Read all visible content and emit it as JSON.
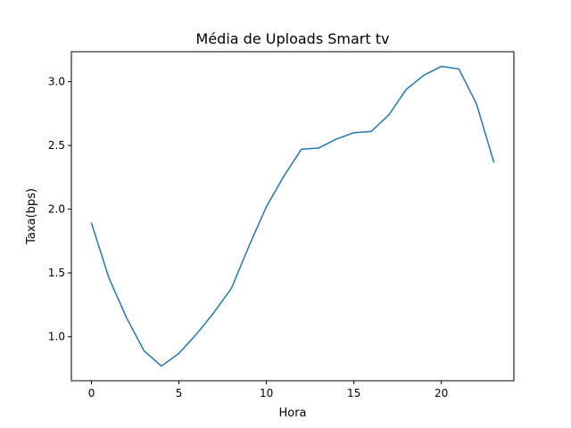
{
  "chart_data": {
    "type": "line",
    "title": "Média de Uploads Smart tv",
    "xlabel": "Hora",
    "ylabel": "Taxa(bps)",
    "xlim": [
      -1.15,
      24.15
    ],
    "ylim": [
      0.655,
      3.235
    ],
    "xticks": [
      0,
      5,
      10,
      15,
      20
    ],
    "yticks": [
      1.0,
      1.5,
      2.0,
      2.5,
      3.0
    ],
    "grid": false,
    "legend": "none",
    "series": [
      {
        "color": "#1f77b4",
        "x": [
          0,
          1,
          2,
          3,
          4,
          5,
          6,
          7,
          8,
          9,
          10,
          11,
          12,
          13,
          14,
          15,
          16,
          17,
          18,
          19,
          20,
          21,
          22,
          23
        ],
        "y": [
          1.89,
          1.46,
          1.15,
          0.89,
          0.77,
          0.87,
          1.02,
          1.19,
          1.38,
          1.71,
          2.02,
          2.26,
          2.47,
          2.48,
          2.55,
          2.6,
          2.61,
          2.74,
          2.94,
          3.05,
          3.12,
          3.1,
          2.83,
          2.37
        ]
      }
    ]
  }
}
